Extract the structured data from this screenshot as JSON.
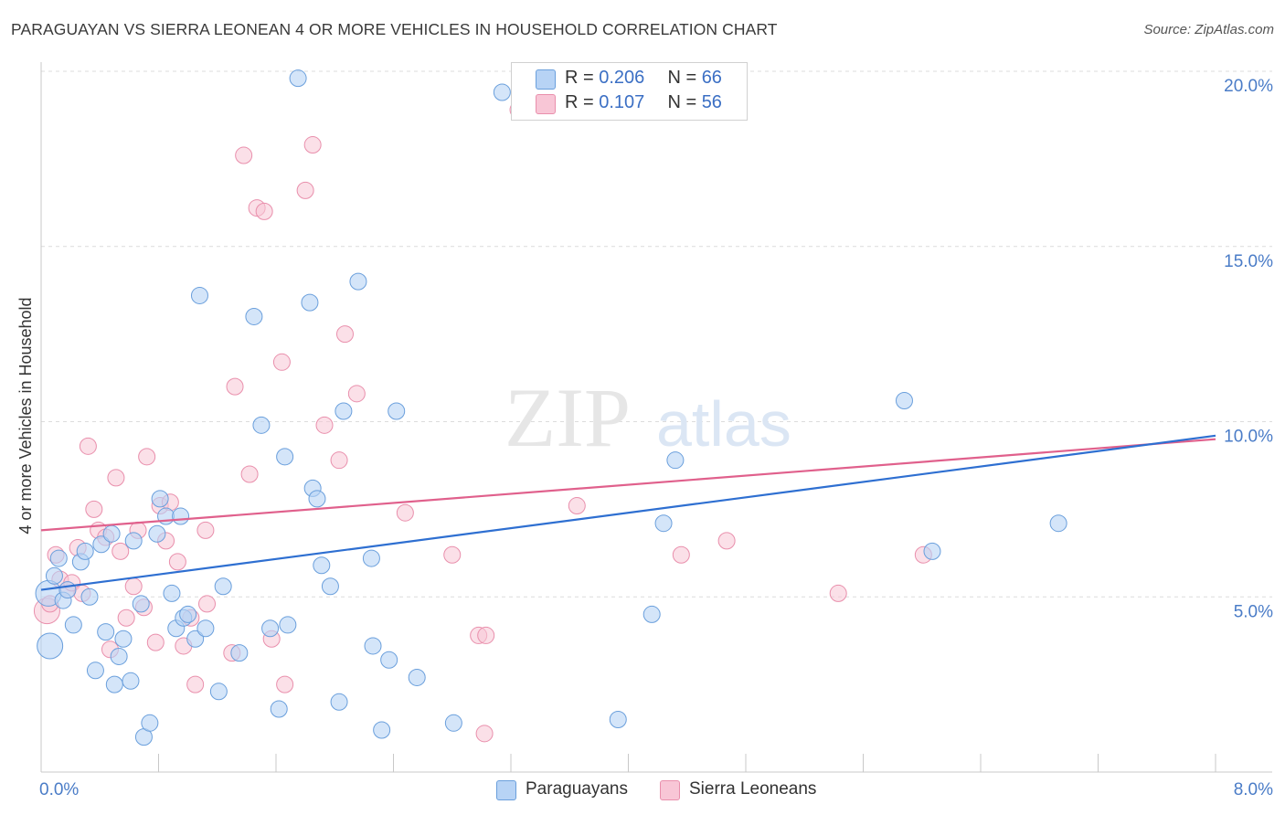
{
  "title": "PARAGUAYAN VS SIERRA LEONEAN 4 OR MORE VEHICLES IN HOUSEHOLD CORRELATION CHART",
  "source": "Source: ZipAtlas.com",
  "watermark": {
    "zip": "ZIP",
    "atlas": "atlas"
  },
  "legend_top": [
    {
      "r_label": "R =",
      "r_value": "0.206",
      "n_label": "N =",
      "n_value": "66"
    },
    {
      "r_label": "R =",
      "r_value": "0.107",
      "n_label": "N =",
      "n_value": "56"
    }
  ],
  "legend_bottom": [
    "Paraguayans",
    "Sierra Leoneans"
  ],
  "chart_data": {
    "type": "scatter",
    "title": "PARAGUAYAN VS SIERRA LEONEAN 4 OR MORE VEHICLES IN HOUSEHOLD CORRELATION CHART",
    "xlabel": "",
    "ylabel": "4 or more Vehicles in Household",
    "xlim": [
      0.0,
      8.0
    ],
    "ylim": [
      0.0,
      20.0
    ],
    "x_ticks": [
      "0.0%",
      "8.0%"
    ],
    "y_ticks": [
      {
        "value": 5,
        "label": "5.0%"
      },
      {
        "value": 10,
        "label": "10.0%"
      },
      {
        "value": 15,
        "label": "15.0%"
      },
      {
        "value": 20,
        "label": "20.0%"
      }
    ],
    "grid": true,
    "legend_placement": "top-center",
    "colors": {
      "paraguayans_fill": "#b7d3f5",
      "paraguayans_stroke": "#6a9fdc",
      "paraguayans_line": "#2e6fd1",
      "sierra_fill": "#f8c6d6",
      "sierra_stroke": "#e98fac",
      "sierra_line": "#e0608c",
      "tick_label": "#4a7cc7"
    },
    "series": [
      {
        "name": "Paraguayans",
        "r": 0.206,
        "n": 66,
        "trend": {
          "x": [
            0.0,
            8.0
          ],
          "y": [
            5.2,
            9.6
          ]
        },
        "points": [
          [
            0.05,
            5.1,
            14
          ],
          [
            0.06,
            3.6,
            14
          ],
          [
            0.09,
            5.6,
            9
          ],
          [
            0.12,
            6.1,
            9
          ],
          [
            0.15,
            4.9,
            9
          ],
          [
            0.18,
            5.2,
            9
          ],
          [
            0.22,
            4.2,
            9
          ],
          [
            0.27,
            6.0,
            9
          ],
          [
            0.3,
            6.3,
            9
          ],
          [
            0.33,
            5.0,
            9
          ],
          [
            0.37,
            2.9,
            9
          ],
          [
            0.41,
            6.5,
            9
          ],
          [
            0.44,
            4.0,
            9
          ],
          [
            0.48,
            6.8,
            9
          ],
          [
            0.5,
            2.5,
            9
          ],
          [
            0.53,
            3.3,
            9
          ],
          [
            0.56,
            3.8,
            9
          ],
          [
            0.61,
            2.6,
            9
          ],
          [
            0.63,
            6.6,
            9
          ],
          [
            0.68,
            4.8,
            9
          ],
          [
            0.7,
            1.0,
            9
          ],
          [
            0.74,
            1.4,
            9
          ],
          [
            0.79,
            6.8,
            9
          ],
          [
            0.81,
            7.8,
            9
          ],
          [
            0.85,
            7.3,
            9
          ],
          [
            0.89,
            5.1,
            9
          ],
          [
            0.92,
            4.1,
            9
          ],
          [
            0.95,
            7.3,
            9
          ],
          [
            0.97,
            4.4,
            9
          ],
          [
            1.0,
            4.5,
            9
          ],
          [
            1.05,
            3.8,
            9
          ],
          [
            1.08,
            13.6,
            9
          ],
          [
            1.12,
            4.1,
            9
          ],
          [
            1.21,
            2.3,
            9
          ],
          [
            1.24,
            5.3,
            9
          ],
          [
            1.35,
            3.4,
            9
          ],
          [
            1.45,
            13.0,
            9
          ],
          [
            1.5,
            9.9,
            9
          ],
          [
            1.56,
            4.1,
            9
          ],
          [
            1.62,
            1.8,
            9
          ],
          [
            1.66,
            9.0,
            9
          ],
          [
            1.68,
            4.2,
            9
          ],
          [
            1.83,
            13.4,
            9
          ],
          [
            1.85,
            8.1,
            9
          ],
          [
            1.88,
            7.8,
            9
          ],
          [
            1.91,
            5.9,
            9
          ],
          [
            1.97,
            5.3,
            9
          ],
          [
            2.03,
            2.0,
            9
          ],
          [
            2.06,
            10.3,
            9
          ],
          [
            2.16,
            14.0,
            9
          ],
          [
            2.25,
            6.1,
            9
          ],
          [
            2.26,
            3.6,
            9
          ],
          [
            2.32,
            1.2,
            9
          ],
          [
            2.37,
            3.2,
            9
          ],
          [
            2.42,
            10.3,
            9
          ],
          [
            2.56,
            2.7,
            9
          ],
          [
            2.81,
            1.4,
            9
          ],
          [
            1.75,
            19.8,
            9
          ],
          [
            3.14,
            19.4,
            9
          ],
          [
            3.93,
            1.5,
            9
          ],
          [
            4.16,
            4.5,
            9
          ],
          [
            4.24,
            7.1,
            9
          ],
          [
            4.32,
            8.9,
            9
          ],
          [
            5.88,
            10.6,
            9
          ],
          [
            6.07,
            6.3,
            9
          ],
          [
            6.93,
            7.1,
            9
          ]
        ]
      },
      {
        "name": "Sierra Leoneans",
        "r": 0.107,
        "n": 56,
        "trend": {
          "x": [
            0.0,
            8.0
          ],
          "y": [
            6.9,
            9.5
          ]
        },
        "points": [
          [
            0.04,
            4.6,
            14
          ],
          [
            0.06,
            4.8,
            9
          ],
          [
            0.1,
            6.2,
            9
          ],
          [
            0.13,
            5.5,
            9
          ],
          [
            0.18,
            5.2,
            9
          ],
          [
            0.21,
            5.4,
            9
          ],
          [
            0.25,
            6.4,
            9
          ],
          [
            0.28,
            5.1,
            9
          ],
          [
            0.32,
            9.3,
            9
          ],
          [
            0.36,
            7.5,
            9
          ],
          [
            0.39,
            6.9,
            9
          ],
          [
            0.44,
            6.7,
            9
          ],
          [
            0.47,
            3.5,
            9
          ],
          [
            0.51,
            8.4,
            9
          ],
          [
            0.54,
            6.3,
            9
          ],
          [
            0.58,
            4.4,
            9
          ],
          [
            0.63,
            5.3,
            9
          ],
          [
            0.66,
            6.9,
            9
          ],
          [
            0.7,
            4.7,
            9
          ],
          [
            0.72,
            9.0,
            9
          ],
          [
            0.78,
            3.7,
            9
          ],
          [
            0.81,
            7.6,
            9
          ],
          [
            0.85,
            6.6,
            9
          ],
          [
            0.88,
            7.7,
            9
          ],
          [
            0.93,
            6.0,
            9
          ],
          [
            0.97,
            3.6,
            9
          ],
          [
            1.02,
            4.4,
            9
          ],
          [
            1.05,
            2.5,
            9
          ],
          [
            1.13,
            4.8,
            9
          ],
          [
            1.12,
            6.9,
            9
          ],
          [
            1.3,
            3.4,
            9
          ],
          [
            1.32,
            11.0,
            9
          ],
          [
            1.38,
            17.6,
            9
          ],
          [
            1.42,
            8.5,
            9
          ],
          [
            1.47,
            16.1,
            9
          ],
          [
            1.52,
            16.0,
            9
          ],
          [
            1.57,
            3.8,
            9
          ],
          [
            1.64,
            11.7,
            9
          ],
          [
            1.66,
            2.5,
            9
          ],
          [
            1.8,
            16.6,
            9
          ],
          [
            1.85,
            17.9,
            9
          ],
          [
            1.93,
            9.9,
            9
          ],
          [
            2.03,
            8.9,
            9
          ],
          [
            2.07,
            12.5,
            9
          ],
          [
            2.15,
            10.8,
            9
          ],
          [
            2.48,
            7.4,
            9
          ],
          [
            2.8,
            6.2,
            9
          ],
          [
            2.98,
            3.9,
            9
          ],
          [
            3.03,
            3.9,
            9
          ],
          [
            3.02,
            1.1,
            9
          ],
          [
            3.25,
            18.9,
            9
          ],
          [
            3.65,
            7.6,
            9
          ],
          [
            4.36,
            6.2,
            9
          ],
          [
            4.67,
            6.6,
            9
          ],
          [
            5.43,
            5.1,
            9
          ],
          [
            6.01,
            6.2,
            9
          ]
        ]
      }
    ]
  }
}
